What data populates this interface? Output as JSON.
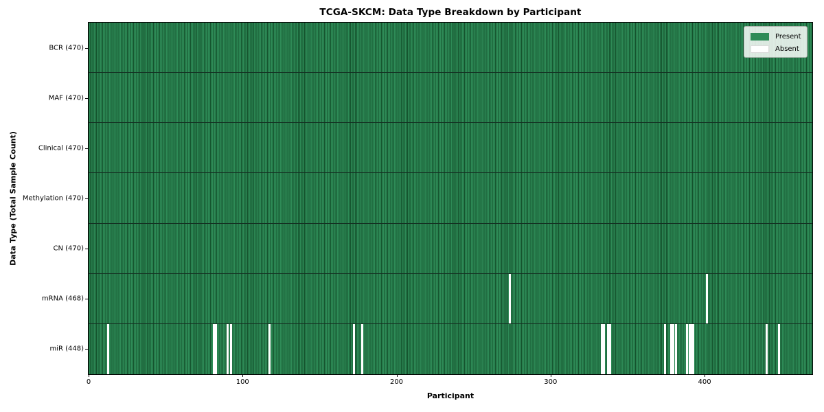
{
  "chart_data": {
    "type": "heatmap",
    "title": "TCGA-SKCM: Data Type Breakdown by Participant",
    "xlabel": "Participant",
    "ylabel": "Data Type (Total Sample Count)",
    "n_participants": 470,
    "x_ticks": [
      0,
      100,
      200,
      300,
      400
    ],
    "grid": false,
    "legend_position": "upper right",
    "legend": [
      {
        "label": "Present",
        "color": "#2e8b57"
      },
      {
        "label": "Absent",
        "color": "#ffffff"
      }
    ],
    "colors": {
      "present_fill": "#2e8b57",
      "cell_edge": "#14532d",
      "row_divider": "#143022",
      "absent_fill": "#ffffff",
      "axis_spine": "#000000"
    },
    "rows": [
      {
        "label": "BCR (470)",
        "data_type": "BCR",
        "present_count": 470,
        "absent_indices": []
      },
      {
        "label": "MAF (470)",
        "data_type": "MAF",
        "present_count": 470,
        "absent_indices": []
      },
      {
        "label": "Clinical (470)",
        "data_type": "Clinical",
        "present_count": 470,
        "absent_indices": []
      },
      {
        "label": "Methylation (470)",
        "data_type": "Methylation",
        "present_count": 470,
        "absent_indices": []
      },
      {
        "label": "CN (470)",
        "data_type": "CN",
        "present_count": 470,
        "absent_indices": []
      },
      {
        "label": "mRNA (468)",
        "data_type": "mRNA",
        "present_count": 468,
        "absent_indices": [
          273,
          401
        ]
      },
      {
        "label": "miR (448)",
        "data_type": "miR",
        "present_count": 448,
        "absent_indices": [
          12,
          81,
          82,
          90,
          92,
          117,
          172,
          177,
          333,
          334,
          337,
          338,
          374,
          378,
          379,
          381,
          388,
          390,
          391,
          392,
          440,
          448
        ]
      }
    ]
  }
}
